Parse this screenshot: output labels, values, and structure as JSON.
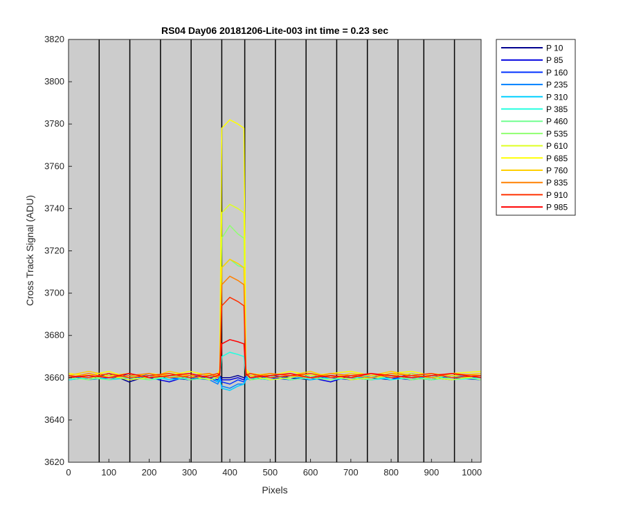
{
  "chart_data": {
    "type": "line",
    "title": "RS04 Day06 20181206-Lite-003 int time = 0.23 sec",
    "xlabel": "Pixels",
    "ylabel": "Cross Track Signal (ADU)",
    "xlim": [
      0,
      1023
    ],
    "ylim": [
      3620,
      3820
    ],
    "x_ticks": [
      0,
      100,
      200,
      300,
      400,
      500,
      600,
      700,
      800,
      900,
      1000
    ],
    "y_ticks": [
      3620,
      3640,
      3660,
      3680,
      3700,
      3720,
      3740,
      3760,
      3780,
      3800,
      3820
    ],
    "grid": false,
    "background": "#cccccc",
    "legend_position": "outside-top-right",
    "band_boundaries": [
      76,
      152,
      228,
      304,
      380,
      437,
      513,
      589,
      665,
      741,
      817,
      881,
      957
    ],
    "sampled_pixels": [
      0,
      50,
      100,
      150,
      200,
      250,
      300,
      350,
      370,
      375,
      380,
      400,
      420,
      435,
      440,
      450,
      500,
      550,
      600,
      650,
      700,
      750,
      800,
      850,
      900,
      950,
      1023
    ],
    "series": [
      {
        "name": "P 10",
        "color": "#00008f",
        "values": [
          3661,
          3659,
          3662,
          3658,
          3661,
          3660,
          3659,
          3661,
          3660,
          3661,
          3660,
          3660,
          3661,
          3660,
          3660,
          3659,
          3661,
          3660,
          3659,
          3661,
          3660,
          3659,
          3661,
          3660,
          3659,
          3661,
          3660
        ]
      },
      {
        "name": "P 85",
        "color": "#0000df",
        "values": [
          3660,
          3661,
          3659,
          3662,
          3660,
          3658,
          3661,
          3660,
          3659,
          3660,
          3659,
          3659,
          3660,
          3659,
          3661,
          3660,
          3659,
          3661,
          3660,
          3658,
          3661,
          3660,
          3659,
          3662,
          3660,
          3659,
          3661
        ]
      },
      {
        "name": "P 160",
        "color": "#0030ff",
        "values": [
          3659,
          3660,
          3661,
          3659,
          3662,
          3660,
          3659,
          3660,
          3658,
          3661,
          3658,
          3657,
          3659,
          3658,
          3660,
          3661,
          3660,
          3659,
          3661,
          3660,
          3659,
          3661,
          3660,
          3659,
          3661,
          3660,
          3659
        ]
      },
      {
        "name": "P 235",
        "color": "#0080ff",
        "values": [
          3661,
          3659,
          3660,
          3661,
          3659,
          3661,
          3660,
          3659,
          3657,
          3659,
          3656,
          3655,
          3657,
          3657,
          3659,
          3660,
          3661,
          3659,
          3660,
          3661,
          3659,
          3660,
          3661,
          3659,
          3660,
          3661,
          3660
        ]
      },
      {
        "name": "P 310",
        "color": "#00cfff",
        "values": [
          3660,
          3661,
          3659,
          3660,
          3661,
          3659,
          3660,
          3661,
          3658,
          3660,
          3655,
          3654,
          3656,
          3657,
          3660,
          3659,
          3660,
          3661,
          3659,
          3660,
          3661,
          3659,
          3660,
          3661,
          3659,
          3660,
          3661
        ]
      },
      {
        "name": "P 385",
        "color": "#20ffdf",
        "values": [
          3659,
          3660,
          3661,
          3660,
          3659,
          3660,
          3661,
          3659,
          3660,
          3661,
          3670,
          3672,
          3671,
          3670,
          3661,
          3660,
          3659,
          3660,
          3661,
          3659,
          3660,
          3661,
          3659,
          3660,
          3661,
          3659,
          3660
        ]
      },
      {
        "name": "P 460",
        "color": "#70ff8f",
        "values": [
          3661,
          3660,
          3659,
          3661,
          3660,
          3661,
          3659,
          3660,
          3661,
          3662,
          3712,
          3716,
          3713,
          3712,
          3662,
          3660,
          3661,
          3659,
          3660,
          3661,
          3660,
          3659,
          3661,
          3660,
          3659,
          3660,
          3661
        ]
      },
      {
        "name": "P 535",
        "color": "#8fff70",
        "values": [
          3660,
          3659,
          3661,
          3660,
          3659,
          3661,
          3660,
          3661,
          3660,
          3662,
          3726,
          3732,
          3728,
          3726,
          3662,
          3659,
          3660,
          3661,
          3660,
          3659,
          3661,
          3660,
          3661,
          3659,
          3660,
          3661,
          3659
        ]
      },
      {
        "name": "P 610",
        "color": "#dfff20",
        "values": [
          3661,
          3660,
          3661,
          3659,
          3660,
          3662,
          3661,
          3659,
          3660,
          3662,
          3738,
          3742,
          3740,
          3738,
          3662,
          3661,
          3659,
          3660,
          3662,
          3661,
          3659,
          3660,
          3661,
          3662,
          3660,
          3659,
          3661
        ]
      },
      {
        "name": "P 685",
        "color": "#ffff00",
        "values": [
          3662,
          3661,
          3663,
          3660,
          3662,
          3661,
          3663,
          3661,
          3662,
          3664,
          3778,
          3782,
          3780,
          3778,
          3664,
          3662,
          3661,
          3663,
          3661,
          3662,
          3663,
          3661,
          3662,
          3663,
          3661,
          3662,
          3663
        ]
      },
      {
        "name": "P 760",
        "color": "#ffcf00",
        "values": [
          3661,
          3663,
          3661,
          3662,
          3660,
          3663,
          3661,
          3662,
          3661,
          3663,
          3712,
          3716,
          3714,
          3712,
          3663,
          3661,
          3662,
          3661,
          3663,
          3660,
          3662,
          3661,
          3663,
          3661,
          3662,
          3661,
          3662
        ]
      },
      {
        "name": "P 835",
        "color": "#ff8000",
        "values": [
          3660,
          3662,
          3660,
          3661,
          3662,
          3660,
          3661,
          3662,
          3660,
          3662,
          3704,
          3708,
          3706,
          3704,
          3662,
          3660,
          3662,
          3661,
          3660,
          3662,
          3661,
          3660,
          3662,
          3661,
          3660,
          3662,
          3661
        ]
      },
      {
        "name": "P 910",
        "color": "#ff3000",
        "values": [
          3661,
          3660,
          3662,
          3660,
          3661,
          3662,
          3660,
          3661,
          3662,
          3661,
          3694,
          3698,
          3696,
          3694,
          3661,
          3662,
          3660,
          3661,
          3662,
          3660,
          3661,
          3662,
          3660,
          3661,
          3662,
          3660,
          3661
        ]
      },
      {
        "name": "P 985",
        "color": "#ff0000",
        "values": [
          3660,
          3661,
          3660,
          3662,
          3660,
          3661,
          3662,
          3660,
          3661,
          3662,
          3676,
          3678,
          3677,
          3676,
          3662,
          3660,
          3661,
          3662,
          3660,
          3661,
          3660,
          3662,
          3661,
          3660,
          3661,
          3662,
          3660
        ]
      }
    ]
  }
}
